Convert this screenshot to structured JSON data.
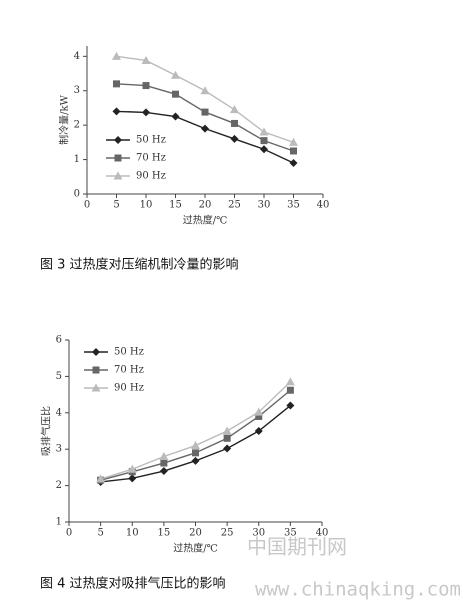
{
  "chart_data": [
    {
      "type": "line",
      "title": "图 3 过热度对压缩机制冷量的影响",
      "x_label": "过热度/℃",
      "y_label": "制冷量/kW",
      "x": [
        5,
        10,
        15,
        20,
        25,
        30,
        35
      ],
      "xlim": [
        0,
        40
      ],
      "xticks": [
        0,
        5,
        10,
        15,
        20,
        25,
        30,
        35,
        40
      ],
      "ylim": [
        0,
        4.3
      ],
      "yticks": [
        0,
        1,
        2,
        3,
        4
      ],
      "legend": "lower left",
      "series": [
        {
          "name": "50 Hz",
          "color": "#222222",
          "marker": "diamond",
          "values": [
            2.4,
            2.37,
            2.25,
            1.9,
            1.6,
            1.3,
            0.9
          ]
        },
        {
          "name": "70 Hz",
          "color": "#666666",
          "marker": "square",
          "values": [
            3.2,
            3.15,
            2.9,
            2.38,
            2.05,
            1.55,
            1.25
          ]
        },
        {
          "name": "90 Hz",
          "color": "#bbbbbb",
          "marker": "triangle",
          "values": [
            4.0,
            3.88,
            3.45,
            3.0,
            2.45,
            1.8,
            1.5
          ]
        }
      ]
    },
    {
      "type": "line",
      "title": "图 4 过热度对吸排气压比的影响",
      "x_label": "过热度/℃",
      "y_label": "吸排气压比",
      "x": [
        5,
        10,
        15,
        20,
        25,
        30,
        35
      ],
      "xlim": [
        0,
        40
      ],
      "xticks": [
        0,
        5,
        10,
        15,
        20,
        25,
        30,
        35,
        40
      ],
      "ylim": [
        1,
        6
      ],
      "yticks": [
        1,
        2,
        3,
        4,
        5,
        6
      ],
      "legend": "upper left",
      "series": [
        {
          "name": "50 Hz",
          "color": "#222222",
          "marker": "diamond",
          "values": [
            2.1,
            2.2,
            2.4,
            2.68,
            3.02,
            3.5,
            4.2
          ]
        },
        {
          "name": "70 Hz",
          "color": "#666666",
          "marker": "square",
          "values": [
            2.15,
            2.38,
            2.62,
            2.9,
            3.3,
            3.9,
            4.62
          ]
        },
        {
          "name": "90 Hz",
          "color": "#bbbbbb",
          "marker": "triangle",
          "values": [
            2.18,
            2.45,
            2.8,
            3.1,
            3.5,
            4.02,
            4.85
          ]
        }
      ]
    }
  ],
  "watermark": {
    "name": "中国期刊网",
    "url": "www.chinaqking.com"
  }
}
